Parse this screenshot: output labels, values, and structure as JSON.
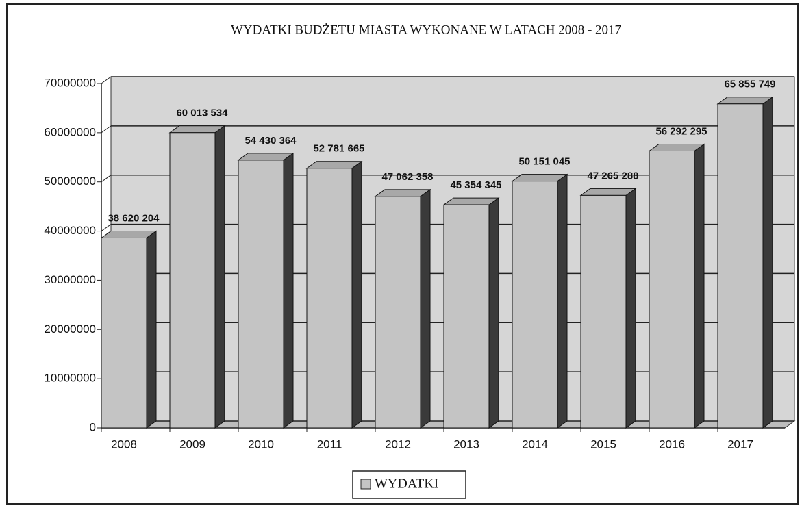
{
  "chart_data": {
    "type": "bar",
    "title": "WYDATKI BUDŻETU MIASTA WYKONANE W LATACH 2008 - 2017",
    "categories": [
      "2008",
      "2009",
      "2010",
      "2011",
      "2012",
      "2013",
      "2014",
      "2015",
      "2016",
      "2017"
    ],
    "series": [
      {
        "name": "WYDATKI",
        "color": "#c4c4c4",
        "values": [
          38620204,
          60013534,
          54430364,
          52781665,
          47062358,
          45354345,
          50151045,
          47265288,
          56292295,
          65855749
        ],
        "value_labels": [
          "38 620 204",
          "60 013 534",
          "54 430 364",
          "52 781 665",
          "47 062 358",
          "45 354 345",
          "50 151 045",
          "47 265 288",
          "56 292 295",
          "65 855 749"
        ]
      }
    ],
    "ylim": [
      0,
      70000000
    ],
    "yticks": [
      0,
      10000000,
      20000000,
      30000000,
      40000000,
      50000000,
      60000000,
      70000000
    ],
    "grid": true
  }
}
